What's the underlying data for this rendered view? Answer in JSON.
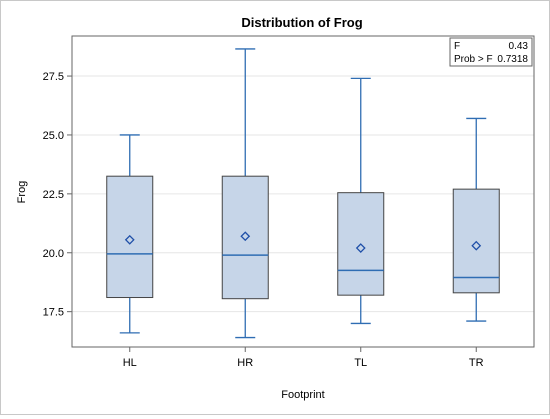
{
  "chart_data": {
    "type": "box",
    "title": "Distribution of Frog",
    "xlabel": "Footprint",
    "ylabel": "Frog",
    "ylim": [
      16.0,
      29.2
    ],
    "yticks": [
      "17.5",
      "20.0",
      "22.5",
      "25.0",
      "27.5"
    ],
    "grid": "horizontal",
    "colors": {
      "box_fill": "#c6d5e8",
      "box_border": "#444444",
      "whisker": "#2f6db3",
      "median": "#2f6db3",
      "mean_marker": "#1f4fa8",
      "grid": "#e6e6e6"
    },
    "categories": [
      "HL",
      "HR",
      "TL",
      "TR"
    ],
    "boxes": [
      {
        "category": "HL",
        "min": 16.6,
        "q1": 18.1,
        "median": 19.95,
        "q3": 23.25,
        "max": 25.0,
        "mean": 20.55
      },
      {
        "category": "HR",
        "min": 16.4,
        "q1": 18.05,
        "median": 19.9,
        "q3": 23.25,
        "max": 28.65,
        "mean": 20.7
      },
      {
        "category": "TL",
        "min": 17.0,
        "q1": 18.2,
        "median": 19.25,
        "q3": 22.55,
        "max": 27.4,
        "mean": 20.2
      },
      {
        "category": "TR",
        "min": 17.1,
        "q1": 18.3,
        "median": 18.95,
        "q3": 22.7,
        "max": 25.7,
        "mean": 20.3
      }
    ],
    "inset": {
      "rows": [
        {
          "label": "F",
          "value": "0.43"
        },
        {
          "label": "Prob > F",
          "value": "0.7318"
        }
      ],
      "placement": "top-right"
    }
  }
}
